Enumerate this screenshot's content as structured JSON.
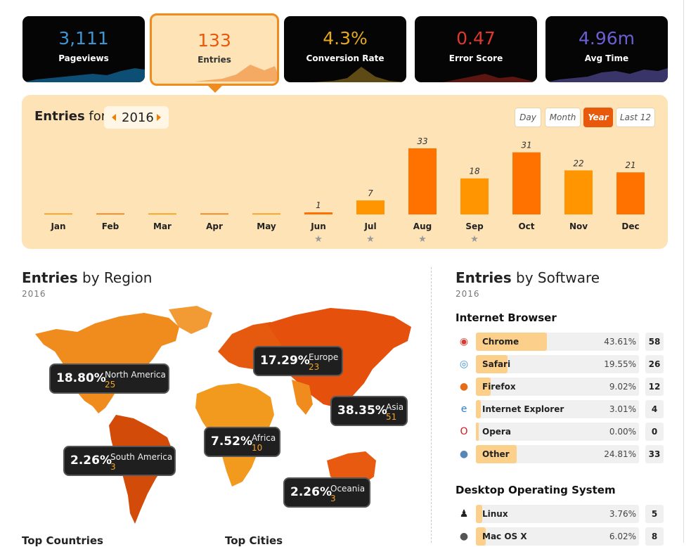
{
  "cards": [
    {
      "value": "3,111",
      "label": "Pageviews",
      "color": "#3d95d4",
      "area": "#0d4e74"
    },
    {
      "value": "133",
      "label": "Entries",
      "color": "#e8590c",
      "area": "#f4a35a"
    },
    {
      "value": "4.3%",
      "label": "Conversion Rate",
      "color": "#e7a91c",
      "area": "#5d4a14"
    },
    {
      "value": "0.47",
      "label": "Error Score",
      "color": "#e0382b",
      "area": "#5c1612"
    },
    {
      "value": "4.96m",
      "label": "Avg Time",
      "color": "#6a5fd6",
      "area": "#3a3569"
    }
  ],
  "panel": {
    "title_bold": "Entries",
    "title_rest": " for",
    "year": "2016",
    "periods": [
      "Day",
      "Month",
      "Year",
      "Last 12"
    ],
    "selected_period": "Year"
  },
  "chart_data": {
    "type": "bar",
    "categories": [
      "Jan",
      "Feb",
      "Mar",
      "Apr",
      "May",
      "Jun",
      "Jul",
      "Aug",
      "Sep",
      "Oct",
      "Nov",
      "Dec"
    ],
    "values": [
      0,
      0,
      0,
      0,
      0,
      1,
      7,
      33,
      18,
      31,
      22,
      21
    ],
    "value_labels": [
      "",
      "",
      "",
      "",
      "",
      "1",
      "7",
      "33",
      "18",
      "31",
      "22",
      "21"
    ],
    "starred": [
      "Jun",
      "Jul",
      "Aug",
      "Sep"
    ],
    "colors": {
      "dark": "#ff7200",
      "light": "#ff9500"
    }
  },
  "region": {
    "title_bold": "Entries",
    "title_rest": " by Region",
    "year": "2016",
    "tooltips": [
      {
        "pct": "18.80%",
        "name": "North America",
        "count": "25"
      },
      {
        "pct": "17.29%",
        "name": "Europe",
        "count": "23"
      },
      {
        "pct": "38.35%",
        "name": "Asia",
        "count": "51"
      },
      {
        "pct": "7.52%",
        "name": "Africa",
        "count": "10"
      },
      {
        "pct": "2.26%",
        "name": "South America",
        "count": "3"
      },
      {
        "pct": "2.26%",
        "name": "Oceania",
        "count": "3"
      }
    ],
    "footers": [
      "Top Countries",
      "Top Cities"
    ]
  },
  "software": {
    "title_bold": "Entries",
    "title_rest": " by Software",
    "year": "2016",
    "browser_title": "Internet Browser",
    "browsers": [
      {
        "icon": "chrome-icon",
        "glyph": "◉",
        "color": "#d83b2b",
        "name": "Chrome",
        "pct": "43.61%",
        "frac": 0.4361,
        "count": "58"
      },
      {
        "icon": "safari-icon",
        "glyph": "◎",
        "color": "#3a8fd8",
        "name": "Safari",
        "pct": "19.55%",
        "frac": 0.1955,
        "count": "26"
      },
      {
        "icon": "firefox-icon",
        "glyph": "●",
        "color": "#e66d17",
        "name": "Firefox",
        "pct": "9.02%",
        "frac": 0.0902,
        "count": "12"
      },
      {
        "icon": "internet-explorer-icon",
        "glyph": "e",
        "color": "#2d7fd3",
        "name": "Internet Explorer",
        "pct": "3.01%",
        "frac": 0.0301,
        "count": "4"
      },
      {
        "icon": "opera-icon",
        "glyph": "O",
        "color": "#d8141e",
        "name": "Opera",
        "pct": "0.00%",
        "frac": 0.0,
        "count": "0"
      },
      {
        "icon": "globe-icon",
        "glyph": "●",
        "color": "#5587b8",
        "name": "Other",
        "pct": "24.81%",
        "frac": 0.2481,
        "count": "33"
      }
    ],
    "os_title": "Desktop Operating System",
    "os": [
      {
        "icon": "linux-icon",
        "glyph": "♟",
        "color": "#222",
        "name": "Linux",
        "pct": "3.76%",
        "frac": 0.0376,
        "count": "5"
      },
      {
        "icon": "apple-icon",
        "glyph": "●",
        "color": "#555",
        "name": "Mac OS X",
        "pct": "6.02%",
        "frac": 0.0602,
        "count": "8"
      }
    ]
  }
}
